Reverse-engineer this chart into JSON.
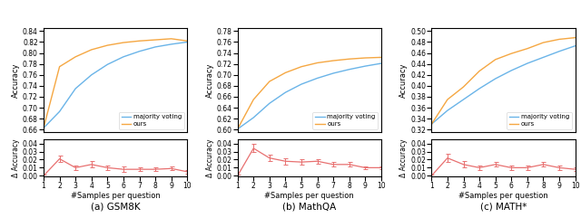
{
  "x": [
    1,
    2,
    3,
    4,
    5,
    6,
    7,
    8,
    9,
    10
  ],
  "gsm8k_majority": [
    0.663,
    0.693,
    0.735,
    0.76,
    0.779,
    0.793,
    0.803,
    0.811,
    0.816,
    0.82
  ],
  "gsm8k_ours": [
    0.663,
    0.775,
    0.793,
    0.806,
    0.814,
    0.819,
    0.822,
    0.824,
    0.826,
    0.822
  ],
  "gsm8k_delta": [
    0.0,
    0.021,
    0.01,
    0.014,
    0.01,
    0.008,
    0.008,
    0.008,
    0.009,
    0.005
  ],
  "gsm8k_delta_err": [
    0.002,
    0.004,
    0.003,
    0.004,
    0.003,
    0.003,
    0.002,
    0.002,
    0.002,
    0.002
  ],
  "gsm8k_ylim": [
    0.655,
    0.845
  ],
  "gsm8k_yticks": [
    0.66,
    0.68,
    0.7,
    0.72,
    0.74,
    0.76,
    0.78,
    0.8,
    0.82,
    0.84
  ],
  "mathqa_majority": [
    0.601,
    0.622,
    0.648,
    0.668,
    0.683,
    0.694,
    0.703,
    0.71,
    0.716,
    0.721
  ],
  "mathqa_ours": [
    0.601,
    0.655,
    0.688,
    0.704,
    0.715,
    0.722,
    0.726,
    0.729,
    0.731,
    0.732
  ],
  "mathqa_delta": [
    0.0,
    0.034,
    0.022,
    0.018,
    0.017,
    0.018,
    0.014,
    0.014,
    0.01,
    0.01
  ],
  "mathqa_delta_err": [
    0.002,
    0.005,
    0.004,
    0.004,
    0.003,
    0.003,
    0.003,
    0.003,
    0.002,
    0.002
  ],
  "mathqa_ylim": [
    0.595,
    0.785
  ],
  "mathqa_yticks": [
    0.6,
    0.62,
    0.64,
    0.66,
    0.68,
    0.7,
    0.72,
    0.74,
    0.76,
    0.78
  ],
  "math_majority": [
    0.33,
    0.355,
    0.375,
    0.395,
    0.413,
    0.428,
    0.441,
    0.452,
    0.463,
    0.473
  ],
  "math_ours": [
    0.33,
    0.375,
    0.398,
    0.427,
    0.448,
    0.459,
    0.468,
    0.479,
    0.485,
    0.488
  ],
  "math_delta": [
    0.0,
    0.022,
    0.014,
    0.01,
    0.014,
    0.01,
    0.01,
    0.014,
    0.01,
    0.008
  ],
  "math_delta_err": [
    0.002,
    0.005,
    0.004,
    0.003,
    0.003,
    0.003,
    0.003,
    0.003,
    0.003,
    0.002
  ],
  "math_ylim": [
    0.315,
    0.505
  ],
  "math_yticks": [
    0.32,
    0.34,
    0.36,
    0.38,
    0.4,
    0.42,
    0.44,
    0.46,
    0.48,
    0.5
  ],
  "delta_ylim": [
    -0.001,
    0.045
  ],
  "delta_yticks": [
    0.0,
    0.01,
    0.02,
    0.03,
    0.04
  ],
  "color_majority": "#6ab4e8",
  "color_ours": "#f5a742",
  "color_delta": "#e87070",
  "titles": [
    "(a) GSM8K",
    "(b) MathQA",
    "(c) MATH*"
  ],
  "ylabel_acc": "Accuracy",
  "ylabel_delta": "Δ Accuracy",
  "xlabel": "#Samples per question"
}
